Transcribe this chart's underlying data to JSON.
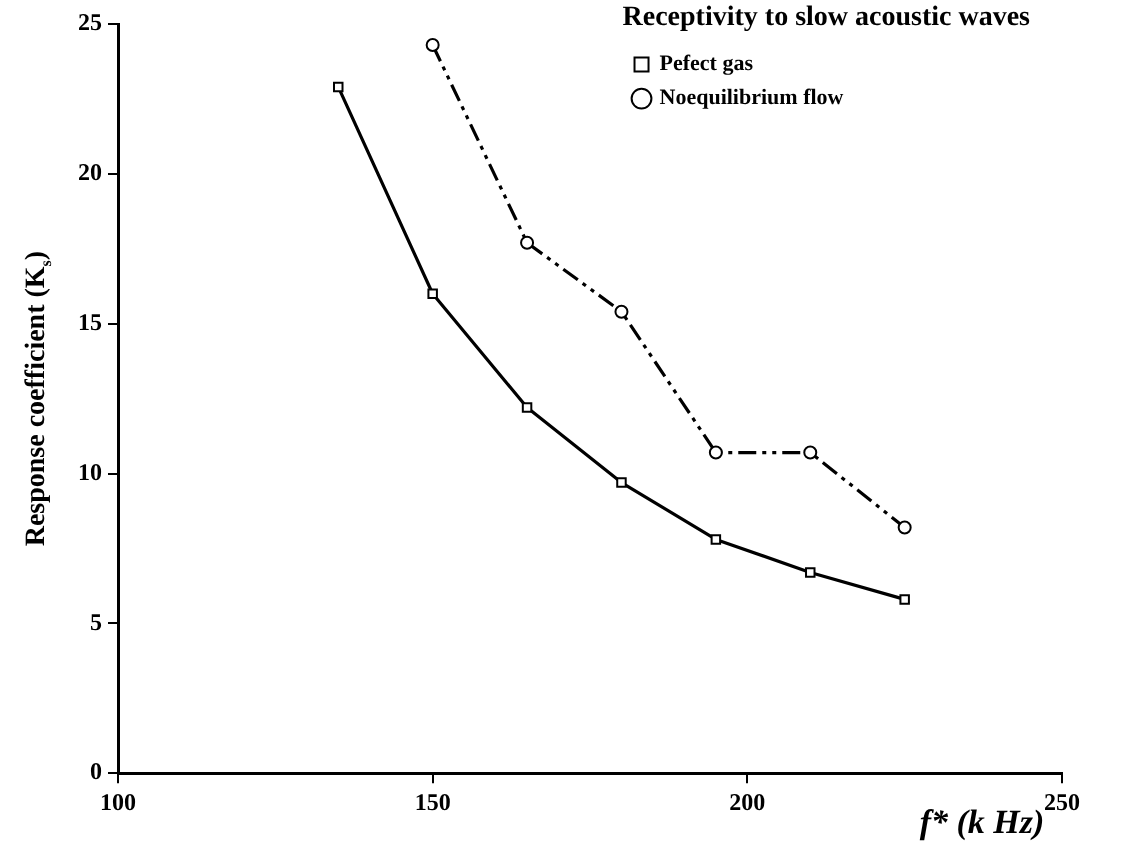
{
  "chart_data": {
    "type": "line",
    "title": "Receptivity to slow acoustic waves",
    "xlabel": "f* (k Hz)",
    "ylabel": "Response coefficient (K$_{s}$)",
    "xlim": [
      100,
      250
    ],
    "xticks": [
      100,
      150,
      200,
      250
    ],
    "ylim": [
      0,
      25
    ],
    "yticks": [
      0,
      5,
      10,
      15,
      20,
      25
    ],
    "grid": false,
    "legend": "top right",
    "series": [
      {
        "name": "Pefect gas",
        "color": "#000000",
        "marker": "square",
        "line_style": "solid",
        "x": [
          135,
          150,
          165,
          180,
          195,
          210,
          225
        ],
        "values": [
          22.9,
          16.0,
          12.2,
          9.7,
          7.8,
          6.7,
          5.8
        ]
      },
      {
        "name": "Noequilibrium flow",
        "color": "#000000",
        "marker": "circle",
        "line_style": "dashed",
        "x": [
          150,
          165,
          180,
          195,
          210,
          225
        ],
        "values": [
          24.3,
          17.7,
          15.4,
          10.7,
          10.7,
          8.2
        ]
      }
    ]
  }
}
